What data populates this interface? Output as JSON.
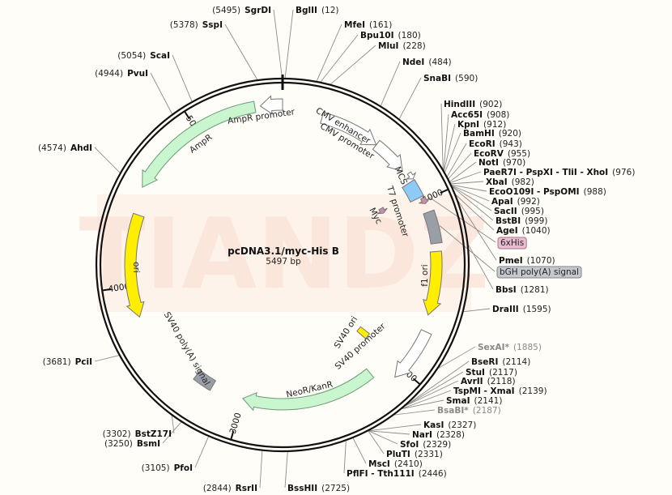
{
  "plasmid": {
    "name": "pcDNA3.1/myc-His B",
    "size_label": "5497 bp",
    "length": 5497
  },
  "watermark": "TIANDZ",
  "ticks": [
    "1000",
    "2000",
    "3000",
    "4000",
    "5000"
  ],
  "colors": {
    "ring": "#111111",
    "green": "#c9f5cf",
    "yellow": "#ffee00",
    "gray": "#9a9ea6",
    "pink": "#c98fab",
    "blue": "#8ecaf6",
    "white": "#ffffff",
    "watermark_bg": "#fdeee6"
  },
  "features": [
    {
      "name": "AmpR promoter",
      "start": 5375,
      "end": 5497,
      "dir": -1,
      "color": "white",
      "kind": "arrow"
    },
    {
      "name": "AmpR",
      "start": 4565,
      "end": 5345,
      "dir": -1,
      "color": "green",
      "kind": "arrow"
    },
    {
      "name": "CMV enhancer",
      "start": 229,
      "end": 580,
      "dir": 1,
      "color": "white",
      "kind": "arrow"
    },
    {
      "name": "CMV promoter",
      "start": 580,
      "end": 794,
      "dir": 1,
      "color": "white",
      "kind": "arrow"
    },
    {
      "name": "T7 promoter",
      "start": 825,
      "end": 865,
      "dir": 1,
      "color": "white",
      "kind": "arrow"
    },
    {
      "name": "MCS",
      "start": 872,
      "end": 975,
      "dir": 0,
      "color": "blue",
      "kind": "box"
    },
    {
      "name": "Myc",
      "start": 920,
      "end": 960,
      "dir": 1,
      "color": "pink",
      "kind": "arrow"
    },
    {
      "name": "6xHis",
      "start": 985,
      "end": 1020,
      "dir": 1,
      "color": "pink",
      "kind": "arrow"
    },
    {
      "name": "bGH poly(A) signal",
      "start": 1070,
      "end": 1252,
      "dir": 0,
      "color": "gray",
      "kind": "box"
    },
    {
      "name": "f1 ori",
      "start": 1298,
      "end": 1664,
      "dir": 1,
      "color": "yellow",
      "kind": "arrow"
    },
    {
      "name": "SV40 promoter",
      "start": 1756,
      "end": 2061,
      "dir": 1,
      "color": "white",
      "kind": "arrow"
    },
    {
      "name": "SV40 ori",
      "start": 1960,
      "end": 2010,
      "dir": 0,
      "color": "yellow",
      "kind": "box"
    },
    {
      "name": "NeoR/KanR",
      "start": 2153,
      "end": 3002,
      "dir": 1,
      "color": "green",
      "kind": "arrow"
    },
    {
      "name": "SV40 poly(A) signal",
      "start": 3207,
      "end": 3329,
      "dir": 0,
      "color": "gray",
      "kind": "box"
    },
    {
      "name": "ori",
      "start": 3817,
      "end": 4414,
      "dir": -1,
      "color": "yellow",
      "kind": "arrow"
    }
  ],
  "sites": [
    {
      "name": "SgrDI",
      "pos": "5495",
      "bp": 5495
    },
    {
      "name": "BglII",
      "pos": "12",
      "bp": 12
    },
    {
      "name": "SspI",
      "pos": "5378",
      "bp": 5378
    },
    {
      "name": "MfeI",
      "pos": "161",
      "bp": 161
    },
    {
      "name": "Bpu10I",
      "pos": "180",
      "bp": 180
    },
    {
      "name": "MluI",
      "pos": "228",
      "bp": 228
    },
    {
      "name": "ScaI",
      "pos": "5054",
      "bp": 5054
    },
    {
      "name": "NdeI",
      "pos": "484",
      "bp": 484
    },
    {
      "name": "PvuI",
      "pos": "4944",
      "bp": 4944
    },
    {
      "name": "SnaBI",
      "pos": "590",
      "bp": 590
    },
    {
      "name": "HindIII",
      "pos": "902",
      "bp": 902
    },
    {
      "name": "Acc65I",
      "pos": "908",
      "bp": 908
    },
    {
      "name": "KpnI",
      "pos": "912",
      "bp": 912
    },
    {
      "name": "BamHI",
      "pos": "920",
      "bp": 920
    },
    {
      "name": "EcoRI",
      "pos": "943",
      "bp": 943
    },
    {
      "name": "EcoRV",
      "pos": "955",
      "bp": 955
    },
    {
      "name": "NotI",
      "pos": "970",
      "bp": 970
    },
    {
      "name": "PaeR7I - PspXI - TliI - XhoI",
      "pos": "976",
      "bp": 976
    },
    {
      "name": "XbaI",
      "pos": "982",
      "bp": 982
    },
    {
      "name": "EcoO109I - PspOMI",
      "pos": "988",
      "bp": 988
    },
    {
      "name": "ApaI",
      "pos": "992",
      "bp": 992
    },
    {
      "name": "SacII",
      "pos": "995",
      "bp": 995
    },
    {
      "name": "BstBI",
      "pos": "999",
      "bp": 999
    },
    {
      "name": "AgeI",
      "pos": "1040",
      "bp": 1040
    },
    {
      "name": "PmeI",
      "pos": "1070",
      "bp": 1070
    },
    {
      "name": "BbsI",
      "pos": "1281",
      "bp": 1281
    },
    {
      "name": "DraIII",
      "pos": "1595",
      "bp": 1595
    },
    {
      "name": "SexAI*",
      "pos": "1885",
      "bp": 1885,
      "gray": true
    },
    {
      "name": "BseRI",
      "pos": "2114",
      "bp": 2114
    },
    {
      "name": "StuI",
      "pos": "2117",
      "bp": 2117
    },
    {
      "name": "AvrII",
      "pos": "2118",
      "bp": 2118
    },
    {
      "name": "TspMI - XmaI",
      "pos": "2139",
      "bp": 2139
    },
    {
      "name": "SmaI",
      "pos": "2141",
      "bp": 2141
    },
    {
      "name": "BsaBI*",
      "pos": "2187",
      "bp": 2187,
      "gray": true
    },
    {
      "name": "KasI",
      "pos": "2327",
      "bp": 2327
    },
    {
      "name": "NarI",
      "pos": "2328",
      "bp": 2328
    },
    {
      "name": "SfoI",
      "pos": "2329",
      "bp": 2329
    },
    {
      "name": "PluTI",
      "pos": "2331",
      "bp": 2331
    },
    {
      "name": "MscI",
      "pos": "2410",
      "bp": 2410
    },
    {
      "name": "PflFI - Tth111I",
      "pos": "2446",
      "bp": 2446
    },
    {
      "name": "BssHII",
      "pos": "2725",
      "bp": 2725
    },
    {
      "name": "RsrII",
      "pos": "2844",
      "bp": 2844
    },
    {
      "name": "PfoI",
      "pos": "3105",
      "bp": 3105
    },
    {
      "name": "BstZ17I",
      "pos": "3302",
      "bp": 3302
    },
    {
      "name": "BsmI",
      "pos": "3250",
      "bp": 3250
    },
    {
      "name": "PciI",
      "pos": "3681",
      "bp": 3681
    },
    {
      "name": "AhdI",
      "pos": "4574",
      "bp": 4574
    }
  ],
  "feature_callouts": [
    "6xHis",
    "bGH poly(A) signal"
  ]
}
